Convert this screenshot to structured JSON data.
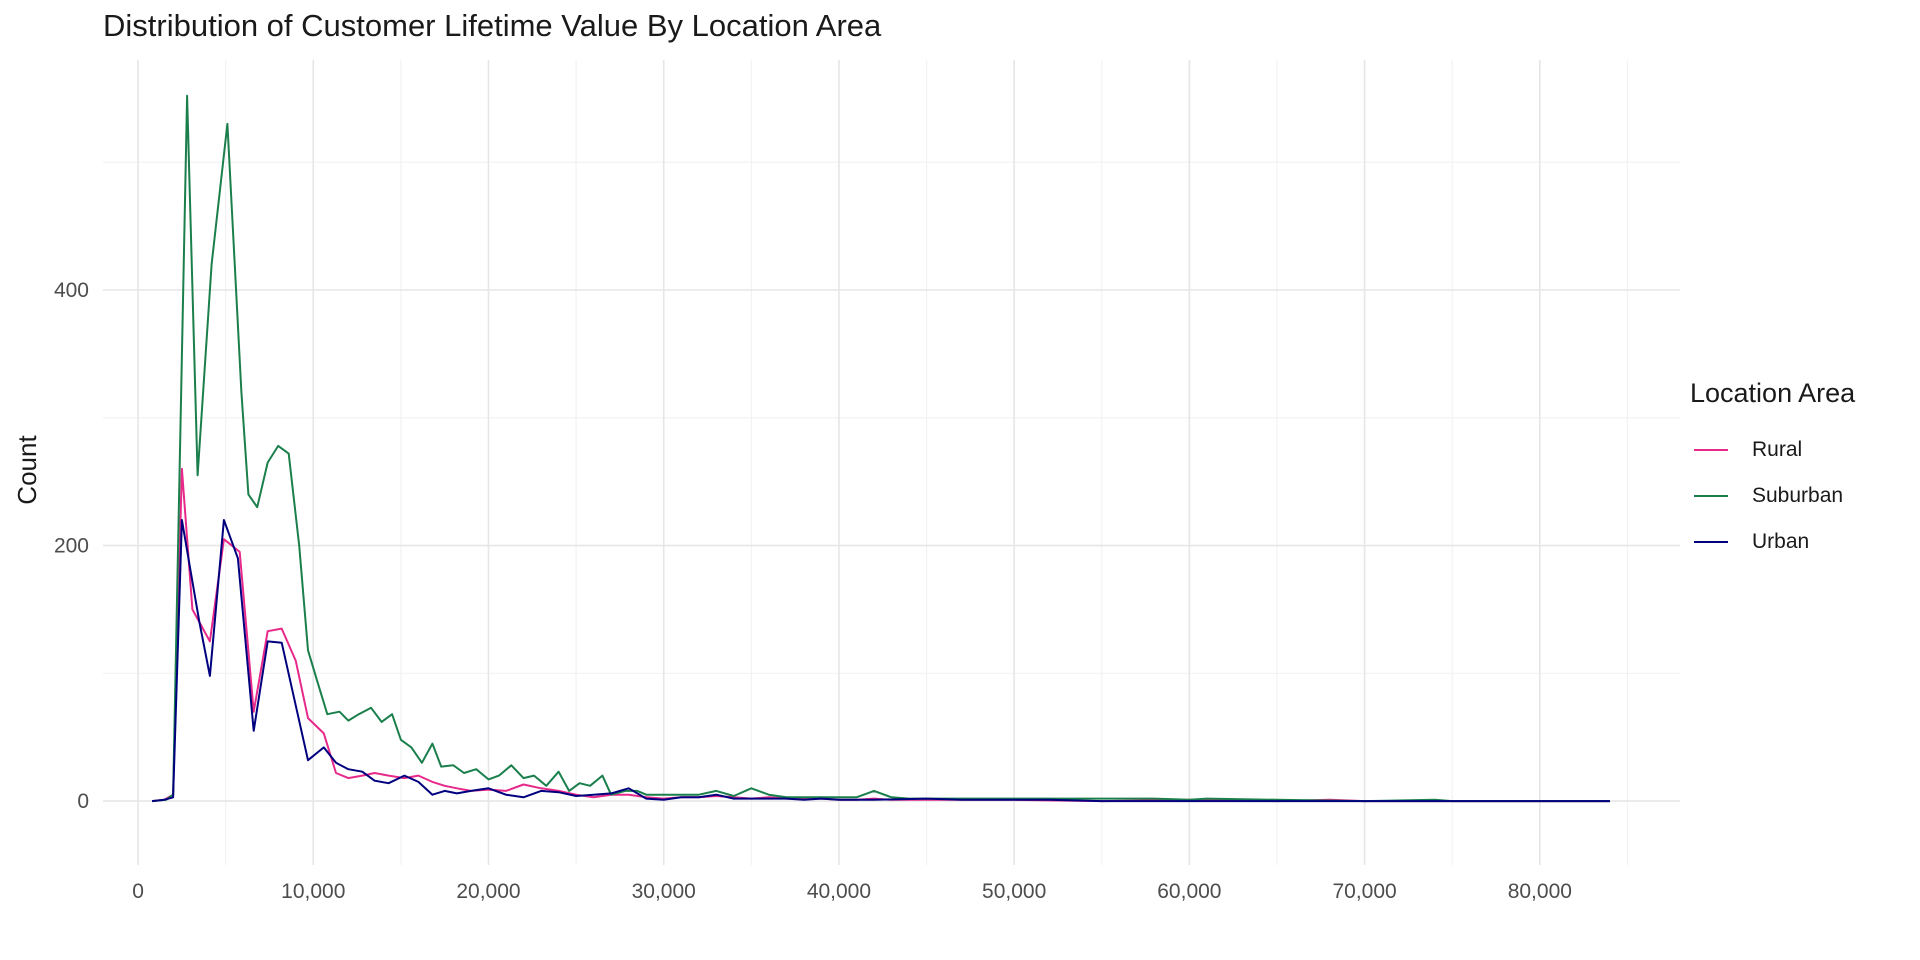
{
  "chart_data": {
    "type": "line",
    "title": "Distribution of Customer Lifetime Value By Location Area",
    "xlabel": "",
    "ylabel": "Count",
    "xlim": [
      -2000,
      88000
    ],
    "ylim": [
      -50,
      580
    ],
    "x_ticks": [
      0,
      10000,
      20000,
      30000,
      40000,
      50000,
      60000,
      70000,
      80000
    ],
    "x_tick_labels": [
      "0",
      "10,000",
      "20,000",
      "30,000",
      "40,000",
      "50,000",
      "60,000",
      "70,000",
      "80,000"
    ],
    "y_ticks": [
      0,
      200,
      400
    ],
    "y_tick_labels": [
      "0",
      "200",
      "400"
    ],
    "y_minor_ticks": [
      100,
      300,
      500
    ],
    "x_minor_ticks": [
      5000,
      15000,
      25000,
      35000,
      45000,
      55000,
      65000,
      75000,
      85000
    ],
    "grid": true,
    "legend": {
      "title": "Location Area",
      "position": "right"
    },
    "series": [
      {
        "name": "Rural",
        "color": "#e7298a",
        "points": [
          [
            800,
            0
          ],
          [
            1500,
            1
          ],
          [
            2000,
            5
          ],
          [
            2500,
            260
          ],
          [
            3100,
            150
          ],
          [
            4100,
            125
          ],
          [
            4900,
            205
          ],
          [
            5800,
            195
          ],
          [
            6600,
            70
          ],
          [
            7400,
            133
          ],
          [
            8200,
            135
          ],
          [
            9000,
            110
          ],
          [
            9700,
            65
          ],
          [
            10600,
            53
          ],
          [
            11300,
            22
          ],
          [
            12000,
            18
          ],
          [
            12800,
            20
          ],
          [
            13500,
            22
          ],
          [
            14300,
            20
          ],
          [
            15200,
            18
          ],
          [
            16000,
            20
          ],
          [
            16800,
            15
          ],
          [
            17500,
            12
          ],
          [
            18200,
            10
          ],
          [
            19000,
            8
          ],
          [
            20000,
            9
          ],
          [
            21000,
            8
          ],
          [
            22000,
            13
          ],
          [
            23000,
            10
          ],
          [
            24000,
            8
          ],
          [
            25000,
            5
          ],
          [
            26000,
            3
          ],
          [
            27000,
            5
          ],
          [
            28000,
            5
          ],
          [
            29000,
            3
          ],
          [
            30000,
            2
          ],
          [
            31000,
            3
          ],
          [
            32000,
            3
          ],
          [
            33000,
            4
          ],
          [
            34000,
            3
          ],
          [
            35000,
            2
          ],
          [
            36000,
            3
          ],
          [
            37000,
            2
          ],
          [
            38000,
            2
          ],
          [
            39000,
            2
          ],
          [
            40000,
            1
          ],
          [
            41000,
            1
          ],
          [
            42000,
            2
          ],
          [
            43000,
            1
          ],
          [
            44000,
            1
          ],
          [
            45000,
            1
          ],
          [
            47000,
            1
          ],
          [
            50000,
            1
          ],
          [
            55000,
            0
          ],
          [
            60000,
            1
          ],
          [
            65000,
            0
          ],
          [
            68000,
            1
          ],
          [
            70000,
            0
          ],
          [
            75000,
            0
          ],
          [
            80000,
            0
          ],
          [
            84000,
            0
          ]
        ]
      },
      {
        "name": "Suburban",
        "color": "#1b7f4c",
        "points": [
          [
            800,
            0
          ],
          [
            1600,
            1
          ],
          [
            2000,
            5
          ],
          [
            2800,
            552
          ],
          [
            3400,
            255
          ],
          [
            4200,
            420
          ],
          [
            5100,
            530
          ],
          [
            5900,
            320
          ],
          [
            6300,
            240
          ],
          [
            6800,
            230
          ],
          [
            7400,
            265
          ],
          [
            8000,
            278
          ],
          [
            8600,
            272
          ],
          [
            9200,
            200
          ],
          [
            9700,
            118
          ],
          [
            10200,
            95
          ],
          [
            10800,
            68
          ],
          [
            11500,
            70
          ],
          [
            12000,
            63
          ],
          [
            12600,
            68
          ],
          [
            13300,
            73
          ],
          [
            13900,
            62
          ],
          [
            14500,
            68
          ],
          [
            15000,
            48
          ],
          [
            15600,
            42
          ],
          [
            16200,
            30
          ],
          [
            16800,
            45
          ],
          [
            17300,
            27
          ],
          [
            18000,
            28
          ],
          [
            18600,
            22
          ],
          [
            19300,
            25
          ],
          [
            20000,
            17
          ],
          [
            20600,
            20
          ],
          [
            21300,
            28
          ],
          [
            22000,
            18
          ],
          [
            22600,
            20
          ],
          [
            23300,
            12
          ],
          [
            24000,
            23
          ],
          [
            24600,
            8
          ],
          [
            25200,
            14
          ],
          [
            25800,
            12
          ],
          [
            26500,
            20
          ],
          [
            27000,
            5
          ],
          [
            27800,
            8
          ],
          [
            28500,
            8
          ],
          [
            29000,
            5
          ],
          [
            30000,
            5
          ],
          [
            31000,
            5
          ],
          [
            32000,
            5
          ],
          [
            33000,
            8
          ],
          [
            34000,
            4
          ],
          [
            35000,
            10
          ],
          [
            36000,
            5
          ],
          [
            37000,
            3
          ],
          [
            38000,
            3
          ],
          [
            39000,
            3
          ],
          [
            40000,
            3
          ],
          [
            41000,
            3
          ],
          [
            42000,
            8
          ],
          [
            43000,
            3
          ],
          [
            44000,
            2
          ],
          [
            45000,
            2
          ],
          [
            46000,
            2
          ],
          [
            47000,
            2
          ],
          [
            48000,
            2
          ],
          [
            49000,
            2
          ],
          [
            50000,
            2
          ],
          [
            52000,
            2
          ],
          [
            55000,
            2
          ],
          [
            58000,
            2
          ],
          [
            60000,
            1
          ],
          [
            61000,
            2
          ],
          [
            65000,
            1
          ],
          [
            70000,
            0
          ],
          [
            74000,
            1
          ],
          [
            75000,
            0
          ],
          [
            80000,
            0
          ],
          [
            84000,
            0
          ]
        ]
      },
      {
        "name": "Urban",
        "color": "#00007f",
        "points": [
          [
            800,
            0
          ],
          [
            1500,
            1
          ],
          [
            2000,
            3
          ],
          [
            2500,
            220
          ],
          [
            3000,
            180
          ],
          [
            3500,
            140
          ],
          [
            4100,
            98
          ],
          [
            4900,
            220
          ],
          [
            5700,
            190
          ],
          [
            6600,
            55
          ],
          [
            7400,
            125
          ],
          [
            8200,
            124
          ],
          [
            9000,
            75
          ],
          [
            9700,
            32
          ],
          [
            10600,
            42
          ],
          [
            11300,
            30
          ],
          [
            12000,
            25
          ],
          [
            12800,
            23
          ],
          [
            13500,
            16
          ],
          [
            14300,
            14
          ],
          [
            15200,
            20
          ],
          [
            16000,
            15
          ],
          [
            16800,
            5
          ],
          [
            17500,
            8
          ],
          [
            18200,
            6
          ],
          [
            19000,
            8
          ],
          [
            20000,
            10
          ],
          [
            21000,
            5
          ],
          [
            22000,
            3
          ],
          [
            23000,
            8
          ],
          [
            24000,
            7
          ],
          [
            25000,
            4
          ],
          [
            26000,
            5
          ],
          [
            27000,
            6
          ],
          [
            28000,
            10
          ],
          [
            29000,
            2
          ],
          [
            30000,
            1
          ],
          [
            31000,
            3
          ],
          [
            32000,
            3
          ],
          [
            33000,
            5
          ],
          [
            34000,
            2
          ],
          [
            35000,
            2
          ],
          [
            36000,
            2
          ],
          [
            37000,
            2
          ],
          [
            38000,
            1
          ],
          [
            39000,
            2
          ],
          [
            40000,
            1
          ],
          [
            42000,
            1
          ],
          [
            45000,
            2
          ],
          [
            47000,
            1
          ],
          [
            50000,
            1
          ],
          [
            52000,
            1
          ],
          [
            55000,
            0
          ],
          [
            60000,
            0
          ],
          [
            65000,
            0
          ],
          [
            70000,
            0
          ],
          [
            75000,
            0
          ],
          [
            80000,
            0
          ],
          [
            84000,
            0
          ]
        ]
      }
    ]
  }
}
